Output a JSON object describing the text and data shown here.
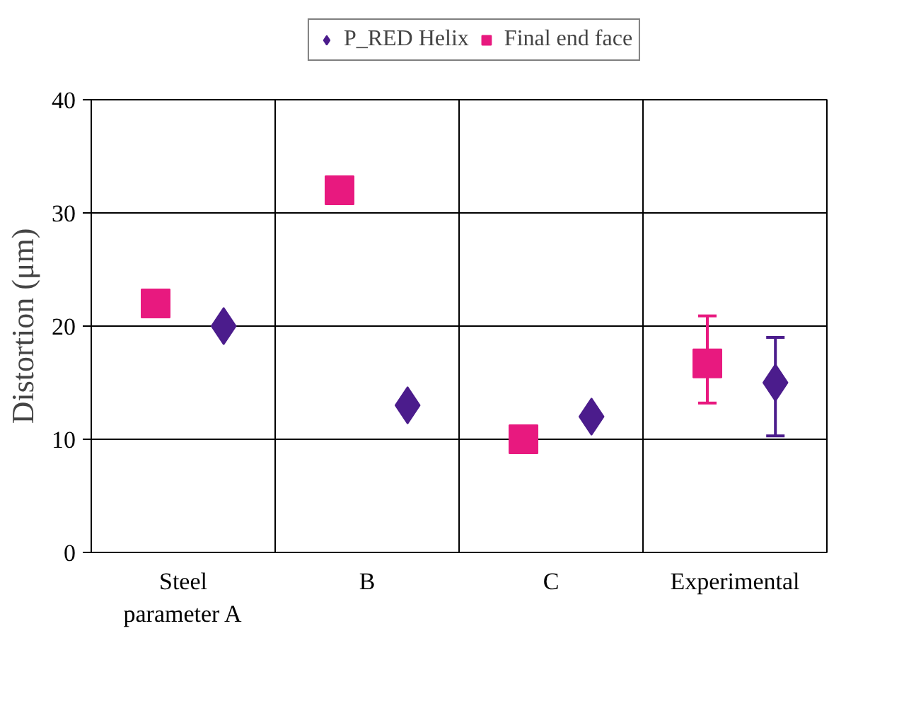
{
  "chart_data": {
    "type": "scatter",
    "ylabel": "Distortion (μm)",
    "categories": [
      "Steel\nparameter A",
      "B",
      "C",
      "Experimental"
    ],
    "ylim": [
      0,
      40
    ],
    "yticks": [
      0,
      10,
      20,
      30,
      40
    ],
    "grid": true,
    "legend": "top",
    "series": [
      {
        "name": "P_RED Helix",
        "color": "#4b1c8c",
        "marker": "diamond",
        "values": [
          20,
          13,
          12,
          15
        ],
        "errors": [
          null,
          null,
          null,
          [
            10.3,
            19
          ]
        ]
      },
      {
        "name": "Final end face",
        "color": "#e8197f",
        "marker": "square",
        "values": [
          22,
          32,
          10,
          16.7
        ],
        "errors": [
          null,
          null,
          null,
          [
            13.2,
            20.9
          ]
        ]
      }
    ]
  }
}
